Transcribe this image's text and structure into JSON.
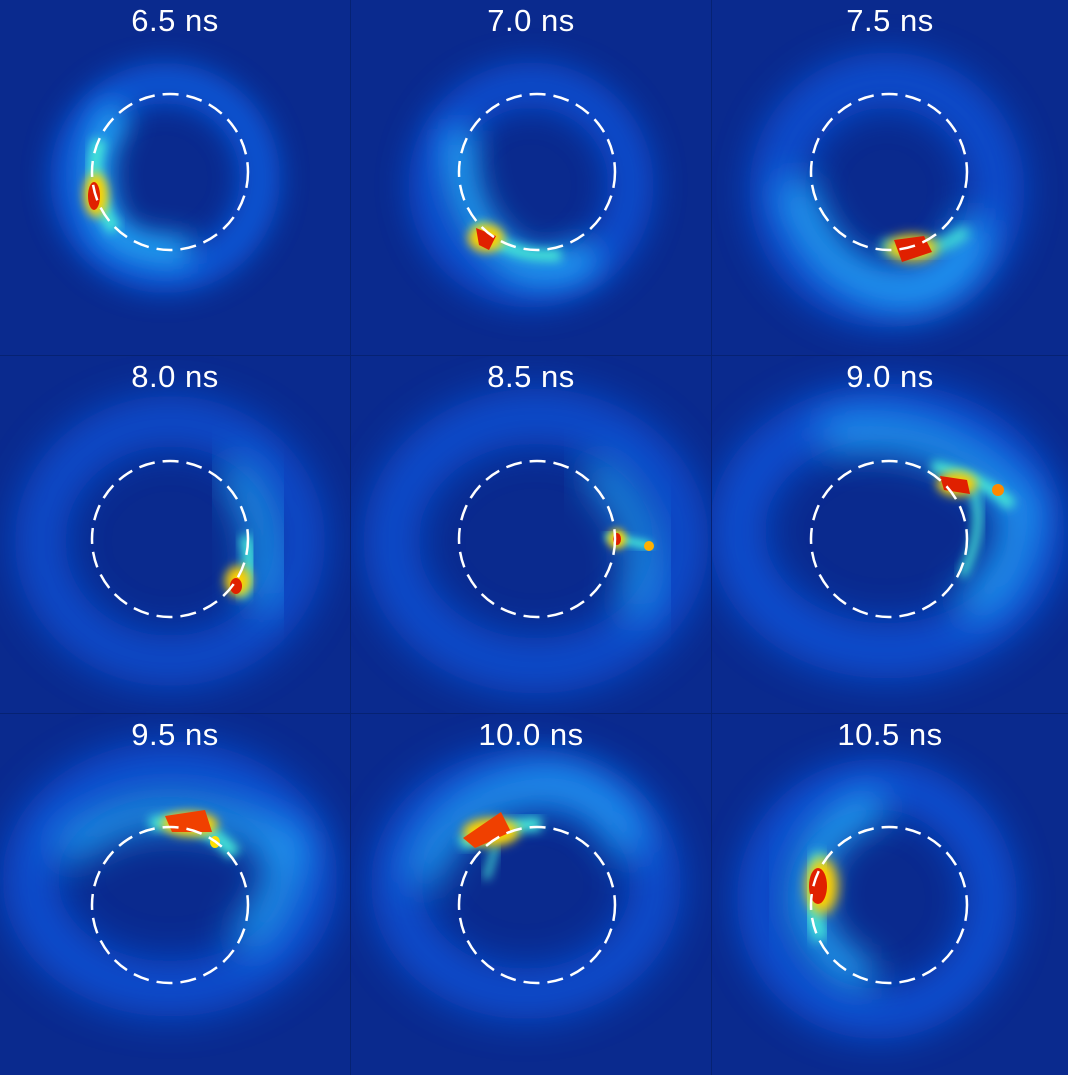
{
  "colors": {
    "background": "#0a2a8e",
    "divider": "#062273",
    "dashed_circle": "#ffffff",
    "label_text": "#ffffff"
  },
  "panels": [
    {
      "label": "6.5 ns"
    },
    {
      "label": "7.0 ns"
    },
    {
      "label": "7.5 ns"
    },
    {
      "label": "8.0 ns"
    },
    {
      "label": "8.5 ns"
    },
    {
      "label": "9.0 ns"
    },
    {
      "label": "9.5 ns"
    },
    {
      "label": "10.0 ns"
    },
    {
      "label": "10.5 ns"
    }
  ]
}
